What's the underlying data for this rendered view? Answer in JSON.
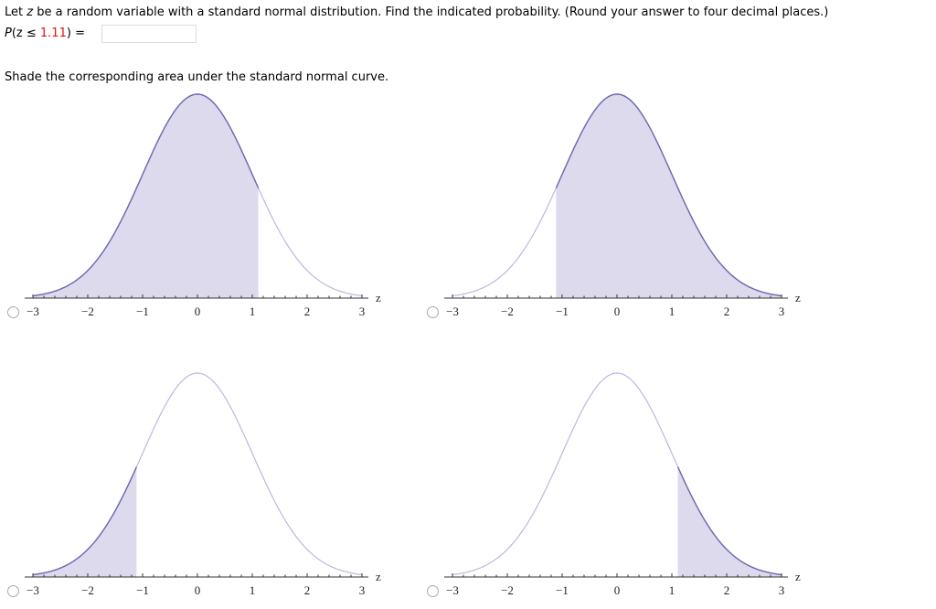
{
  "question": {
    "text_before": "Let ",
    "var": "z",
    "text_after": " be a random variable with a standard normal distribution. Find the indicated probability. (Round your answer to four decimal places.)"
  },
  "prob": {
    "prefix": "P",
    "open": "(z ≤ ",
    "value": "1.11",
    "close": ") =",
    "answer": ""
  },
  "instruction": "Shade the corresponding area under the standard normal curve.",
  "colors": {
    "fill": "#dcdaec",
    "curve_dark": "#6a68b0",
    "curve_light": "#bcb8de",
    "axis": "#333333"
  },
  "chart_data": [
    {
      "type": "area",
      "title": "",
      "xlabel": "z",
      "xlim": [
        -3,
        3
      ],
      "ticks": [
        "−3",
        "−2",
        "−1",
        "0",
        "1",
        "2",
        "3"
      ],
      "shaded": [
        -3,
        1.11
      ],
      "selected": false
    },
    {
      "type": "area",
      "title": "",
      "xlabel": "z",
      "xlim": [
        -3,
        3
      ],
      "ticks": [
        "−3",
        "−2",
        "−1",
        "0",
        "1",
        "2",
        "3"
      ],
      "shaded": [
        -1.11,
        3
      ],
      "selected": false
    },
    {
      "type": "area",
      "title": "",
      "xlabel": "z",
      "xlim": [
        -3,
        3
      ],
      "ticks": [
        "−3",
        "−2",
        "−1",
        "0",
        "1",
        "2",
        "3"
      ],
      "shaded": [
        -3,
        -1.11
      ],
      "selected": false
    },
    {
      "type": "area",
      "title": "",
      "xlabel": "z",
      "xlim": [
        -3,
        3
      ],
      "ticks": [
        "−3",
        "−2",
        "−1",
        "0",
        "1",
        "2",
        "3"
      ],
      "shaded": [
        1.11,
        3
      ],
      "selected": false
    }
  ]
}
